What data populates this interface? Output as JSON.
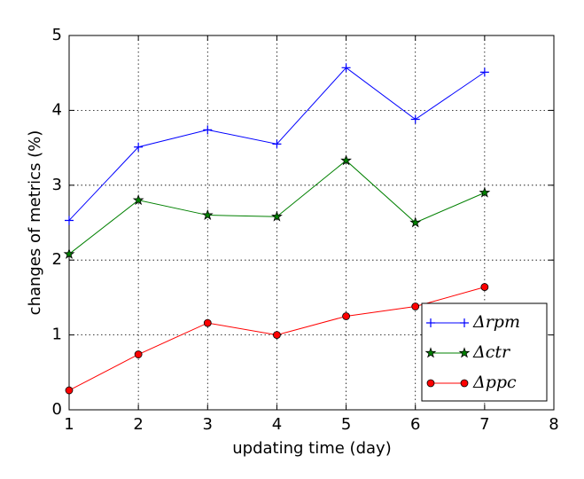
{
  "chart_data": {
    "type": "line",
    "xlabel": "updating time (day)",
    "ylabel": "changes of metrics (%)",
    "x": [
      1,
      2,
      3,
      4,
      5,
      6,
      7
    ],
    "series": [
      {
        "name": "Δrpm",
        "color": "#0000ff",
        "marker": "plus",
        "values": [
          2.53,
          3.51,
          3.74,
          3.55,
          4.57,
          3.88,
          4.51
        ]
      },
      {
        "name": "Δctr",
        "color": "#008000",
        "marker": "star",
        "values": [
          2.08,
          2.8,
          2.6,
          2.58,
          3.33,
          2.5,
          2.9
        ]
      },
      {
        "name": "Δppc",
        "color": "#ff0000",
        "marker": "circle",
        "values": [
          0.26,
          0.74,
          1.16,
          1.0,
          1.25,
          1.38,
          1.64
        ]
      }
    ],
    "xlim": [
      1,
      8
    ],
    "xticks": [
      1,
      2,
      3,
      4,
      5,
      6,
      7,
      8
    ],
    "ylim": [
      0,
      5
    ],
    "yticks": [
      0,
      1,
      2,
      3,
      4,
      5
    ],
    "grid": true,
    "legend": "lower right"
  }
}
